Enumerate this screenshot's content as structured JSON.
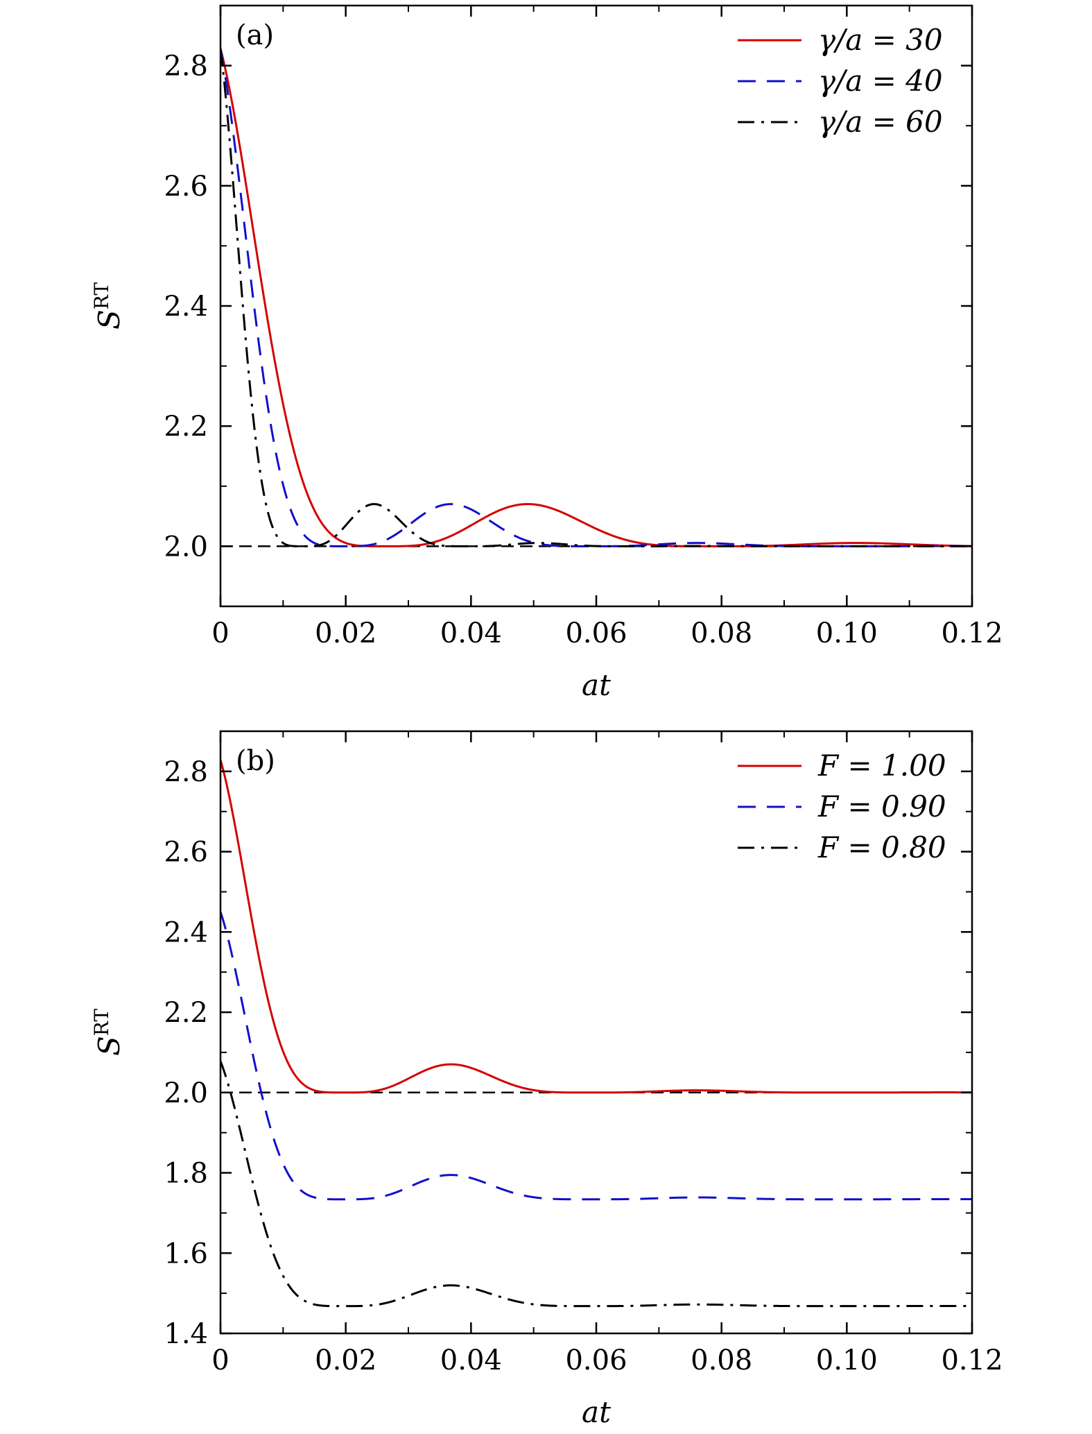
{
  "chart_data": [
    {
      "type": "line",
      "panel_label": "(a)",
      "xlabel": "at",
      "ylabel": "S",
      "ylabel_superscript": "RT",
      "xlim": [
        0,
        0.12
      ],
      "ylim": [
        1.9,
        2.9
      ],
      "xticks": [
        0,
        0.02,
        0.04,
        0.06,
        0.08,
        0.1,
        0.12
      ],
      "xtick_labels": [
        "0",
        "0.02",
        "0.04",
        "0.06",
        "0.08",
        "0.10",
        "0.12"
      ],
      "yticks": [
        2.0,
        2.2,
        2.4,
        2.6,
        2.8
      ],
      "ytick_labels": [
        "2.0",
        "2.2",
        "2.4",
        "2.6",
        "2.8"
      ],
      "legend_position": "top-right",
      "reference_line": {
        "y": 2.0,
        "color": "#000000",
        "style": "dashed"
      },
      "series": [
        {
          "name": "γ/a = 30",
          "color": "#d40000",
          "style": "solid",
          "base": 2.0,
          "amp": 0.8284,
          "period": 0.0524,
          "decay": 2.55
        },
        {
          "name": "γ/a = 40",
          "color": "#1010cc",
          "style": "dashed",
          "base": 2.0,
          "amp": 0.8284,
          "period": 0.0393,
          "decay": 2.55
        },
        {
          "name": "γ/a = 60",
          "color": "#000000",
          "style": "dashdot",
          "base": 2.0,
          "amp": 0.8284,
          "period": 0.0262,
          "decay": 2.55
        }
      ]
    },
    {
      "type": "line",
      "panel_label": "(b)",
      "xlabel": "at",
      "ylabel": "S",
      "ylabel_superscript": "RT",
      "xlim": [
        0,
        0.12
      ],
      "ylim": [
        1.4,
        2.9
      ],
      "xticks": [
        0,
        0.02,
        0.04,
        0.06,
        0.08,
        0.1,
        0.12
      ],
      "xtick_labels": [
        "0",
        "0.02",
        "0.04",
        "0.06",
        "0.08",
        "0.10",
        "0.12"
      ],
      "yticks": [
        1.4,
        1.6,
        1.8,
        2.0,
        2.2,
        2.4,
        2.6,
        2.8
      ],
      "ytick_labels": [
        "1.4",
        "1.6",
        "1.8",
        "2.0",
        "2.2",
        "2.4",
        "2.6",
        "2.8"
      ],
      "legend_position": "top-right",
      "reference_line": {
        "y": 2.0,
        "color": "#000000",
        "style": "dashed"
      },
      "series": [
        {
          "name": "F = 1.00",
          "color": "#d40000",
          "style": "solid",
          "base": 2.0,
          "amp": 0.8284,
          "period": 0.0393,
          "decay": 2.55
        },
        {
          "name": "F = 0.90",
          "color": "#1010cc",
          "style": "dashed",
          "base": 1.734,
          "amp": 0.716,
          "period": 0.0393,
          "decay": 2.55
        },
        {
          "name": "F = 0.80",
          "color": "#000000",
          "style": "dashdot",
          "base": 1.468,
          "amp": 0.61,
          "period": 0.0393,
          "decay": 2.55
        }
      ]
    }
  ]
}
